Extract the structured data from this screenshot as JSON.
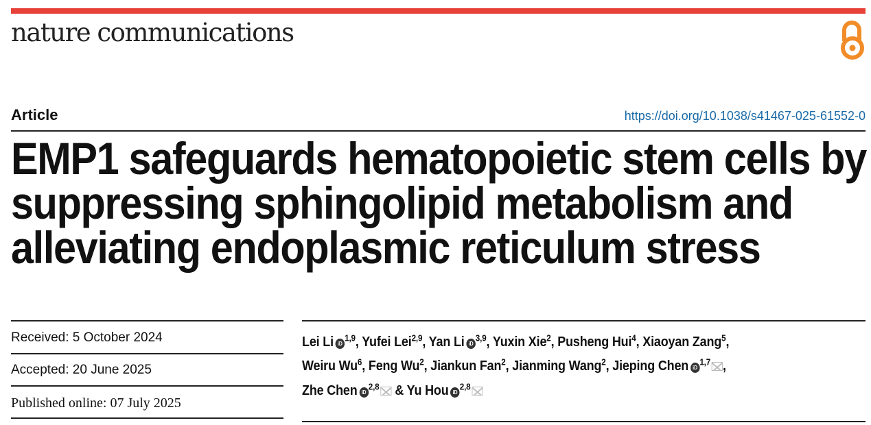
{
  "journal": "nature communications",
  "accent": "#e8413a",
  "open_access_icon_color": "#f28c28",
  "article_type": "Article",
  "doi": "https://doi.org/10.1038/s41467-025-61552-0",
  "title_lines": [
    "EMP1 safeguards hematopoietic stem cells by",
    "suppressing sphingolipid metabolism and",
    "alleviating endoplasmic reticulum stress"
  ],
  "dates": {
    "received": "Received: 5 October 2024",
    "accepted": "Accepted: 20 June 2025",
    "published": "Published online: 07 July 2025"
  },
  "authors": [
    {
      "name": "Lei Li",
      "affil": "1,9",
      "orcid": true,
      "email": false,
      "sep": ", "
    },
    {
      "name": "Yufei Lei",
      "affil": "2,9",
      "orcid": false,
      "email": false,
      "sep": ", "
    },
    {
      "name": "Yan Li",
      "affil": "3,9",
      "orcid": true,
      "email": false,
      "sep": ", "
    },
    {
      "name": "Yuxin Xie",
      "affil": "2",
      "orcid": false,
      "email": false,
      "sep": ", "
    },
    {
      "name": "Pusheng Hui",
      "affil": "4",
      "orcid": false,
      "email": false,
      "sep": ", "
    },
    {
      "name": "Xiaoyan Zang",
      "affil": "5",
      "orcid": false,
      "email": false,
      "sep": ", "
    },
    {
      "name": "Weiru Wu",
      "affil": "6",
      "orcid": false,
      "email": false,
      "sep": ", "
    },
    {
      "name": "Feng Wu",
      "affil": "2",
      "orcid": false,
      "email": false,
      "sep": ", "
    },
    {
      "name": "Jiankun Fan",
      "affil": "2",
      "orcid": false,
      "email": false,
      "sep": ", "
    },
    {
      "name": "Jianming Wang",
      "affil": "2",
      "orcid": false,
      "email": false,
      "sep": ", "
    },
    {
      "name": "Jieping Chen",
      "affil": "1,7",
      "orcid": true,
      "email": true,
      "sep": ", "
    },
    {
      "name": "Zhe Chen",
      "affil": "2,8",
      "orcid": true,
      "email": true,
      "sep": " & "
    },
    {
      "name": "Yu Hou",
      "affil": "2,8",
      "orcid": true,
      "email": true,
      "sep": ""
    }
  ]
}
